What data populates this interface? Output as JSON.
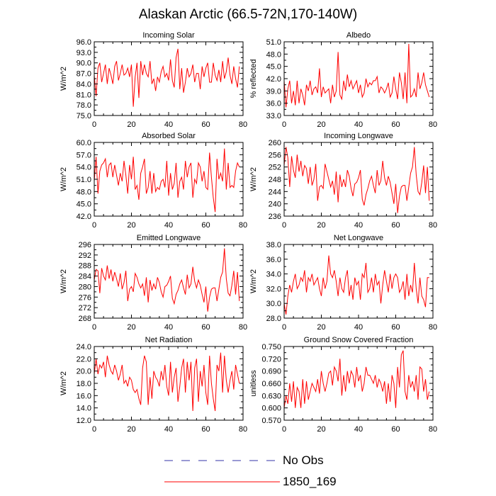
{
  "title": "Alaskan Arctic (66.5-72N,170-140W)",
  "legend": {
    "items": [
      {
        "label": "No Obs",
        "color": "#3333aa",
        "style": "dashed"
      },
      {
        "label": "1850_169",
        "color": "#ff0000",
        "style": "solid"
      }
    ]
  },
  "chart_data": [
    {
      "type": "line",
      "title": "Incoming Solar",
      "ylabel": "W/m^2",
      "ylim": [
        75.0,
        96.0
      ],
      "yticks": [
        "75.0",
        "78.0",
        "81.0",
        "84.0",
        "87.0",
        "90.0",
        "93.0",
        "96.0"
      ],
      "xlim": [
        0,
        80
      ],
      "xticks": [
        "0",
        "20",
        "40",
        "60",
        "80"
      ],
      "series": [
        {
          "name": "1850_169",
          "color": "#ff0000",
          "values": [
            86.5,
            80.5,
            88.5,
            90.0,
            84.5,
            87.0,
            89.5,
            84.0,
            88.5,
            86.5,
            84.0,
            89.0,
            90.5,
            85.0,
            87.0,
            89.5,
            86.5,
            87.0,
            88.5,
            86.0,
            89.5,
            77.5,
            86.0,
            90.0,
            80.0,
            90.5,
            86.5,
            89.5,
            87.0,
            86.0,
            90.5,
            84.0,
            85.5,
            82.0,
            86.0,
            84.5,
            87.5,
            89.0,
            86.0,
            87.0,
            85.0,
            91.0,
            85.0,
            83.0,
            91.5,
            94.0,
            82.5,
            88.5,
            81.5,
            84.5,
            88.5,
            86.0,
            87.0,
            89.5,
            84.5,
            87.0,
            87.0,
            82.5,
            89.0,
            86.0,
            88.5,
            90.0,
            84.5,
            84.5,
            90.0,
            86.5,
            85.0,
            88.0,
            84.5,
            90.5,
            85.5,
            87.5,
            91.5,
            86.5,
            84.0,
            89.0,
            85.5,
            83.0,
            89.0
          ]
        }
      ]
    },
    {
      "type": "line",
      "title": "Albedo",
      "ylabel": "% reflected",
      "ylim": [
        33.0,
        51.0
      ],
      "yticks": [
        "33.0",
        "36.0",
        "39.0",
        "42.0",
        "45.0",
        "48.0",
        "51.0"
      ],
      "xlim": [
        0,
        80
      ],
      "xticks": [
        "0",
        "20",
        "40",
        "60",
        "80"
      ],
      "series": [
        {
          "name": "1850_169",
          "color": "#ff0000",
          "values": [
            41.5,
            35.0,
            39.5,
            41.5,
            36.0,
            39.0,
            35.5,
            41.5,
            36.0,
            39.5,
            38.0,
            35.5,
            40.5,
            39.0,
            41.5,
            38.0,
            39.5,
            40.0,
            38.5,
            44.5,
            37.5,
            40.0,
            38.5,
            39.0,
            39.5,
            36.0,
            40.5,
            37.5,
            39.0,
            48.5,
            38.0,
            37.0,
            41.5,
            39.0,
            43.0,
            40.0,
            41.5,
            39.5,
            40.5,
            41.5,
            38.5,
            40.5,
            37.5,
            38.5,
            42.0,
            40.0,
            41.0,
            40.5,
            41.5,
            41.5,
            42.5,
            38.5,
            40.0,
            39.5,
            38.5,
            39.5,
            41.0,
            37.5,
            38.5,
            42.5,
            39.5,
            37.0,
            43.5,
            41.0,
            37.0,
            43.5,
            36.0,
            50.5,
            37.5,
            38.0,
            39.5,
            37.5,
            43.5,
            39.5,
            41.0,
            43.5,
            40.5,
            39.0,
            37.5
          ]
        }
      ]
    },
    {
      "type": "line",
      "title": "Absorbed Solar",
      "ylabel": "W/m^2",
      "ylim": [
        42.0,
        60.0
      ],
      "yticks": [
        "42.0",
        "45.0",
        "48.0",
        "51.0",
        "54.0",
        "57.0",
        "60.0"
      ],
      "xlim": [
        0,
        80
      ],
      "xticks": [
        "0",
        "20",
        "40",
        "60",
        "80"
      ],
      "series": [
        {
          "name": "1850_169",
          "color": "#ff0000",
          "values": [
            50.5,
            56.5,
            47.5,
            53.0,
            54.5,
            55.0,
            56.0,
            51.5,
            54.5,
            55.0,
            51.5,
            54.5,
            52.0,
            49.5,
            52.5,
            50.5,
            55.5,
            52.0,
            47.5,
            54.5,
            51.0,
            56.5,
            48.5,
            49.5,
            46.0,
            52.5,
            54.0,
            56.0,
            47.5,
            49.0,
            53.0,
            47.5,
            52.5,
            48.0,
            49.0,
            48.5,
            50.5,
            51.0,
            49.0,
            55.5,
            47.0,
            52.5,
            48.5,
            50.0,
            55.0,
            46.5,
            50.5,
            51.5,
            48.5,
            55.5,
            51.5,
            54.0,
            55.0,
            46.5,
            51.0,
            50.0,
            55.0,
            54.0,
            50.5,
            53.0,
            49.0,
            48.5,
            57.5,
            51.5,
            46.5,
            43.0,
            56.0,
            51.0,
            52.5,
            50.5,
            58.5,
            48.5,
            55.0,
            49.0,
            49.5,
            49.0,
            53.0,
            55.0,
            54.0
          ]
        }
      ]
    },
    {
      "type": "line",
      "title": "Incoming Longwave",
      "ylabel": "W/m^2",
      "ylim": [
        236,
        260
      ],
      "yticks": [
        "236",
        "240",
        "244",
        "248",
        "252",
        "256",
        "260"
      ],
      "xlim": [
        0,
        80
      ],
      "xticks": [
        "0",
        "20",
        "40",
        "60",
        "80"
      ],
      "series": [
        {
          "name": "1850_169",
          "color": "#ff0000",
          "values": [
            252.5,
            258.5,
            255.0,
            245.5,
            255.5,
            251.0,
            248.5,
            256.0,
            250.5,
            254.0,
            249.0,
            252.5,
            251.5,
            246.5,
            252.0,
            246.0,
            248.0,
            253.0,
            241.0,
            245.5,
            246.0,
            245.0,
            253.0,
            250.5,
            248.0,
            245.5,
            247.5,
            243.0,
            250.5,
            240.5,
            249.5,
            245.5,
            248.0,
            245.5,
            251.0,
            249.0,
            245.0,
            242.5,
            246.5,
            247.0,
            248.5,
            251.0,
            241.5,
            239.5,
            243.0,
            245.0,
            247.5,
            249.0,
            246.0,
            243.5,
            251.0,
            246.0,
            247.5,
            254.0,
            248.5,
            246.0,
            249.0,
            247.0,
            243.5,
            240.0,
            246.5,
            237.0,
            242.5,
            245.5,
            246.0,
            246.0,
            241.0,
            245.5,
            250.0,
            252.0,
            258.5,
            249.5,
            244.0,
            243.0,
            247.0,
            252.5,
            243.5,
            252.0,
            241.0
          ]
        }
      ]
    },
    {
      "type": "line",
      "title": "Emitted Longwave",
      "ylabel": "W/m^2",
      "ylim": [
        268,
        296
      ],
      "yticks": [
        "268",
        "272",
        "276",
        "280",
        "284",
        "288",
        "292",
        "296"
      ],
      "xlim": [
        0,
        80
      ],
      "xticks": [
        "0",
        "20",
        "40",
        "60",
        "80"
      ],
      "series": [
        {
          "name": "1850_169",
          "color": "#ff0000",
          "values": [
            282.5,
            286.5,
            286.0,
            277.5,
            287.0,
            284.0,
            282.5,
            288.0,
            283.0,
            286.5,
            282.0,
            285.5,
            283.0,
            280.0,
            285.0,
            279.0,
            281.5,
            286.0,
            274.5,
            279.0,
            280.0,
            278.0,
            285.0,
            283.5,
            281.0,
            279.5,
            281.0,
            276.5,
            283.5,
            274.0,
            282.5,
            278.5,
            281.0,
            279.0,
            283.5,
            281.5,
            278.0,
            276.0,
            280.0,
            280.5,
            282.0,
            284.0,
            275.5,
            273.5,
            277.0,
            278.5,
            281.0,
            282.5,
            279.5,
            277.0,
            284.5,
            279.5,
            281.0,
            287.5,
            282.0,
            279.5,
            282.5,
            280.5,
            277.0,
            274.0,
            280.0,
            270.5,
            276.0,
            279.0,
            279.5,
            279.5,
            274.5,
            279.0,
            283.5,
            285.5,
            294.5,
            283.0,
            277.5,
            276.5,
            280.5,
            286.0,
            277.0,
            285.5,
            274.5
          ]
        }
      ]
    },
    {
      "type": "line",
      "title": "Net Longwave",
      "ylabel": "W/m^2",
      "ylim": [
        28.0,
        38.0
      ],
      "yticks": [
        "28.0",
        "30.0",
        "32.0",
        "34.0",
        "36.0",
        "38.0"
      ],
      "xlim": [
        0,
        80
      ],
      "xticks": [
        "0",
        "20",
        "40",
        "60",
        "80"
      ],
      "series": [
        {
          "name": "1850_169",
          "color": "#ff0000",
          "values": [
            30.0,
            28.5,
            31.0,
            32.5,
            31.5,
            33.0,
            34.0,
            32.0,
            32.5,
            33.5,
            33.0,
            34.5,
            31.5,
            33.5,
            33.0,
            34.0,
            32.5,
            33.0,
            33.5,
            32.0,
            31.0,
            33.5,
            32.0,
            33.0,
            36.5,
            34.0,
            33.5,
            34.5,
            33.0,
            31.0,
            33.5,
            32.0,
            31.5,
            33.5,
            34.5,
            31.0,
            32.5,
            30.5,
            33.5,
            32.5,
            33.0,
            30.5,
            34.0,
            33.5,
            35.5,
            31.5,
            32.0,
            33.5,
            31.5,
            34.0,
            32.5,
            33.0,
            30.0,
            32.5,
            34.5,
            33.0,
            31.5,
            34.0,
            32.0,
            33.5,
            34.0,
            33.5,
            31.5,
            32.0,
            33.0,
            30.5,
            34.0,
            31.0,
            32.5,
            31.5,
            35.5,
            32.0,
            30.0,
            33.5,
            31.0,
            30.5,
            29.5,
            33.5,
            33.5
          ]
        }
      ]
    },
    {
      "type": "line",
      "title": "Net Radiation",
      "ylabel": "W/m^2",
      "ylim": [
        12.0,
        24.0
      ],
      "yticks": [
        "12.0",
        "14.0",
        "16.0",
        "18.0",
        "20.0",
        "22.0",
        "24.0"
      ],
      "xlim": [
        0,
        80
      ],
      "xticks": [
        "0",
        "20",
        "40",
        "60",
        "80"
      ],
      "series": [
        {
          "name": "1850_169",
          "color": "#ff0000",
          "values": [
            19.5,
            22.0,
            19.5,
            21.0,
            20.5,
            21.5,
            19.0,
            22.5,
            21.0,
            20.0,
            19.5,
            21.0,
            20.0,
            18.5,
            19.5,
            21.0,
            18.0,
            18.5,
            17.5,
            19.0,
            18.5,
            17.0,
            16.5,
            17.0,
            15.5,
            14.5,
            20.5,
            22.5,
            21.5,
            14.5,
            19.0,
            15.5,
            20.0,
            19.0,
            18.5,
            17.5,
            20.0,
            18.5,
            21.0,
            17.5,
            16.0,
            21.5,
            16.5,
            19.0,
            20.5,
            15.0,
            17.5,
            20.5,
            22.0,
            16.5,
            21.5,
            18.5,
            21.5,
            13.5,
            20.5,
            22.0,
            15.0,
            20.0,
            17.5,
            21.0,
            16.5,
            14.5,
            22.5,
            18.0,
            15.5,
            13.5,
            21.0,
            20.0,
            23.0,
            16.5,
            22.5,
            18.5,
            16.5,
            18.5,
            20.0,
            17.0,
            21.0,
            19.5,
            18.0
          ]
        }
      ]
    },
    {
      "type": "line",
      "title": "Ground Snow Covered Fraction",
      "ylabel": "unitless",
      "ylim": [
        0.57,
        0.75
      ],
      "yticks": [
        "0.570",
        "0.600",
        "0.630",
        "0.660",
        "0.690",
        "0.720",
        "0.750"
      ],
      "xlim": [
        0,
        80
      ],
      "xticks": [
        "0",
        "20",
        "40",
        "60",
        "80"
      ],
      "series": [
        {
          "name": "1850_169",
          "color": "#ff0000",
          "values": [
            0.6,
            0.63,
            0.61,
            0.66,
            0.615,
            0.665,
            0.6,
            0.65,
            0.64,
            0.6,
            0.67,
            0.61,
            0.665,
            0.62,
            0.64,
            0.66,
            0.65,
            0.64,
            0.67,
            0.635,
            0.69,
            0.66,
            0.64,
            0.66,
            0.685,
            0.69,
            0.655,
            0.7,
            0.69,
            0.665,
            0.72,
            0.63,
            0.68,
            0.64,
            0.69,
            0.66,
            0.69,
            0.68,
            0.65,
            0.7,
            0.665,
            0.68,
            0.64,
            0.66,
            0.7,
            0.68,
            0.68,
            0.67,
            0.66,
            0.68,
            0.65,
            0.67,
            0.66,
            0.64,
            0.665,
            0.61,
            0.66,
            0.615,
            0.68,
            0.66,
            0.6,
            0.7,
            0.65,
            0.73,
            0.74,
            0.64,
            0.62,
            0.68,
            0.65,
            0.665,
            0.64,
            0.68,
            0.62,
            0.7,
            0.695,
            0.64,
            0.67,
            0.62,
            0.64
          ]
        }
      ]
    }
  ]
}
